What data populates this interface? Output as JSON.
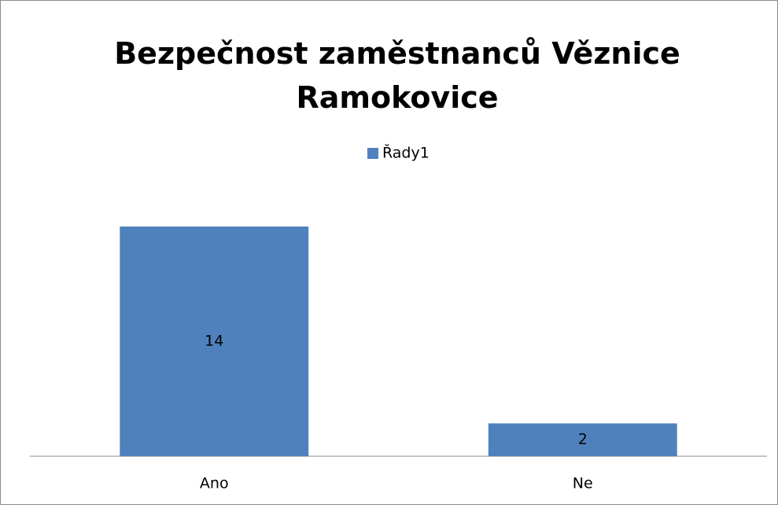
{
  "chart_data": {
    "type": "bar",
    "title": "Bezpečnost zaměstnanců Věznice Ramokovice",
    "categories": [
      "Ano",
      "Ne"
    ],
    "series": [
      {
        "name": "Řady1",
        "color": "#4f81bd",
        "values": [
          14,
          2
        ]
      }
    ],
    "legend": "top"
  }
}
